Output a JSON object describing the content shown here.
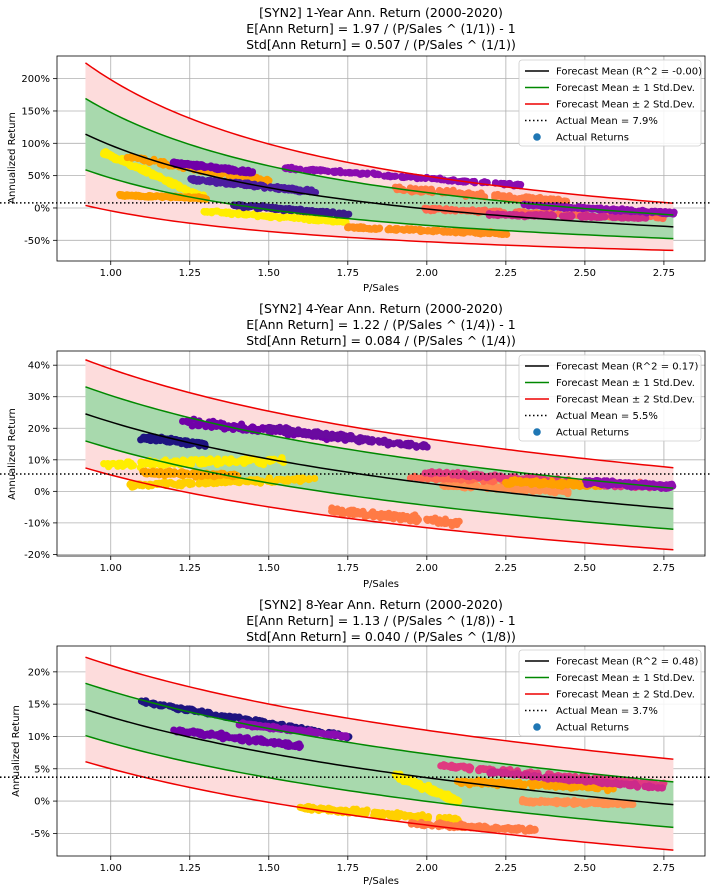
{
  "chart_data": [
    {
      "type": "line",
      "title": [
        "[SYN2] 1-Year Ann. Return (2000-2020)",
        "E[Ann Return] = 1.97 / (P/Sales ^ (1/1)) - 1",
        "Std[Ann Return] = 0.507 / (P/Sales ^ (1/1))"
      ],
      "xlabel": "P/Sales",
      "ylabel": "Annualized Return",
      "xlim": [
        0.83,
        2.88
      ],
      "ylim": [
        -0.82,
        2.35
      ],
      "xticks": [
        1.0,
        1.25,
        1.5,
        1.75,
        2.0,
        2.25,
        2.5,
        2.75
      ],
      "xtick_labels": [
        "1.00",
        "1.25",
        "1.50",
        "1.75",
        "2.00",
        "2.25",
        "2.50",
        "2.75"
      ],
      "yticks": [
        -0.5,
        0.0,
        0.5,
        1.0,
        1.5,
        2.0
      ],
      "ytick_labels": [
        "-50%",
        "0%",
        "50%",
        "100%",
        "150%",
        "200%"
      ],
      "model": {
        "a": 1.97,
        "s": 0.507,
        "k": 1,
        "x_range": [
          0.92,
          2.78
        ]
      },
      "actual_mean": 0.079,
      "legend": [
        "Forecast Mean (R^2 = -0.00)",
        "Forecast Mean ± 1 Std.Dev.",
        "Forecast Mean ± 2 Std.Dev.",
        "Actual Mean = 7.9%",
        "Actual Returns"
      ],
      "scatter": [
        {
          "color": "#ffee00",
          "x": [
            0.98,
            1.3
          ],
          "y": [
            0.85,
            0.15
          ],
          "w": 0.08
        },
        {
          "color": "#ffee00",
          "x": [
            1.3,
            1.75
          ],
          "y": [
            -0.05,
            -0.22
          ],
          "w": 0.06
        },
        {
          "color": "#ffa000",
          "x": [
            1.05,
            1.5
          ],
          "y": [
            0.8,
            0.4
          ],
          "w": 0.1
        },
        {
          "color": "#ffa000",
          "x": [
            1.02,
            1.3
          ],
          "y": [
            0.2,
            0.15
          ],
          "w": 0.05
        },
        {
          "color": "#ff8c1a",
          "x": [
            1.75,
            2.25
          ],
          "y": [
            -0.3,
            -0.4
          ],
          "w": 0.05
        },
        {
          "color": "#7000a8",
          "x": [
            1.2,
            1.45
          ],
          "y": [
            0.7,
            0.55
          ],
          "w": 0.07
        },
        {
          "color": "#4c1da0",
          "x": [
            1.25,
            1.65
          ],
          "y": [
            0.45,
            0.25
          ],
          "w": 0.07
        },
        {
          "color": "#3a1a8a",
          "x": [
            1.38,
            1.75
          ],
          "y": [
            0.05,
            -0.1
          ],
          "w": 0.06
        },
        {
          "color": "#8a0cb0",
          "x": [
            1.55,
            2.3
          ],
          "y": [
            0.62,
            0.35
          ],
          "w": 0.06
        },
        {
          "color": "#ff7a45",
          "x": [
            1.9,
            2.45
          ],
          "y": [
            0.3,
            0.1
          ],
          "w": 0.1
        },
        {
          "color": "#ff6a50",
          "x": [
            2.0,
            2.75
          ],
          "y": [
            -0.02,
            -0.15
          ],
          "w": 0.07
        },
        {
          "color": "#cc2a8a",
          "x": [
            2.2,
            2.7
          ],
          "y": [
            -0.1,
            -0.15
          ],
          "w": 0.06
        },
        {
          "color": "#8f0eb0",
          "x": [
            2.3,
            2.78
          ],
          "y": [
            0.05,
            -0.08
          ],
          "w": 0.05
        }
      ]
    },
    {
      "type": "line",
      "title": [
        "[SYN2] 4-Year Ann. Return (2000-2020)",
        "E[Ann Return] = 1.22 / (P/Sales ^ (1/4)) - 1",
        "Std[Ann Return] = 0.084 / (P/Sales ^ (1/4))"
      ],
      "xlabel": "P/Sales",
      "ylabel": "Annualized Return",
      "xlim": [
        0.83,
        2.88
      ],
      "ylim": [
        -0.205,
        0.445
      ],
      "xticks": [
        1.0,
        1.25,
        1.5,
        1.75,
        2.0,
        2.25,
        2.5,
        2.75
      ],
      "xtick_labels": [
        "1.00",
        "1.25",
        "1.50",
        "1.75",
        "2.00",
        "2.25",
        "2.50",
        "2.75"
      ],
      "yticks": [
        -0.2,
        -0.1,
        0.0,
        0.1,
        0.2,
        0.3,
        0.4
      ],
      "ytick_labels": [
        "-20%",
        "-10%",
        "0%",
        "10%",
        "20%",
        "30%",
        "40%"
      ],
      "model": {
        "a": 1.22,
        "s": 0.084,
        "k": 4,
        "x_range": [
          0.92,
          2.78
        ]
      },
      "actual_mean": 0.055,
      "legend": [
        "Forecast Mean (R^2 = 0.17)",
        "Forecast Mean ± 1 Std.Dev.",
        "Forecast Mean ± 2 Std.Dev.",
        "Actual Mean = 5.5%",
        "Actual Returns"
      ],
      "scatter": [
        {
          "color": "#ffee00",
          "x": [
            0.98,
            1.55
          ],
          "y": [
            0.085,
            0.1
          ],
          "w": 0.03
        },
        {
          "color": "#ffd000",
          "x": [
            1.05,
            1.65
          ],
          "y": [
            0.02,
            0.04
          ],
          "w": 0.02
        },
        {
          "color": "#ffa500",
          "x": [
            1.1,
            1.4
          ],
          "y": [
            0.06,
            0.05
          ],
          "w": 0.02
        },
        {
          "color": "#1f1480",
          "x": [
            1.1,
            1.3
          ],
          "y": [
            0.17,
            0.15
          ],
          "w": 0.02
        },
        {
          "color": "#7000a8",
          "x": [
            1.23,
            1.75
          ],
          "y": [
            0.22,
            0.17
          ],
          "w": 0.03
        },
        {
          "color": "#6a0aa0",
          "x": [
            1.5,
            2.0
          ],
          "y": [
            0.2,
            0.14
          ],
          "w": 0.02
        },
        {
          "color": "#ff7a45",
          "x": [
            1.7,
            2.1
          ],
          "y": [
            -0.06,
            -0.1
          ],
          "w": 0.03
        },
        {
          "color": "#ff9050",
          "x": [
            2.05,
            2.45
          ],
          "y": [
            0.02,
            0.0
          ],
          "w": 0.02
        },
        {
          "color": "#ff6a50",
          "x": [
            1.95,
            2.7
          ],
          "y": [
            0.045,
            0.02
          ],
          "w": 0.02
        },
        {
          "color": "#e03a80",
          "x": [
            2.0,
            2.75
          ],
          "y": [
            0.06,
            0.01
          ],
          "w": 0.02
        },
        {
          "color": "#ffa000",
          "x": [
            2.25,
            2.55
          ],
          "y": [
            0.03,
            0.02
          ],
          "w": 0.02
        },
        {
          "color": "#8f0eb0",
          "x": [
            2.5,
            2.78
          ],
          "y": [
            0.03,
            0.015
          ],
          "w": 0.02
        }
      ]
    },
    {
      "type": "line",
      "title": [
        "[SYN2] 8-Year Ann. Return (2000-2020)",
        "E[Ann Return] = 1.13 / (P/Sales ^ (1/8)) - 1",
        "Std[Ann Return] = 0.040 / (P/Sales ^ (1/8))"
      ],
      "xlabel": "P/Sales",
      "ylabel": "Annualized Return",
      "xlim": [
        0.83,
        2.88
      ],
      "ylim": [
        -0.085,
        0.24
      ],
      "xticks": [
        1.0,
        1.25,
        1.5,
        1.75,
        2.0,
        2.25,
        2.5,
        2.75
      ],
      "xtick_labels": [
        "1.00",
        "1.25",
        "1.50",
        "1.75",
        "2.00",
        "2.25",
        "2.50",
        "2.75"
      ],
      "yticks": [
        -0.05,
        0.0,
        0.05,
        0.1,
        0.15,
        0.2
      ],
      "ytick_labels": [
        "-5%",
        "0%",
        "5%",
        "10%",
        "15%",
        "20%"
      ],
      "model": {
        "a": 1.13,
        "s": 0.04,
        "k": 8,
        "x_range": [
          0.92,
          2.78
        ]
      },
      "actual_mean": 0.037,
      "legend": [
        "Forecast Mean (R^2 = 0.48)",
        "Forecast Mean ± 1 Std.Dev.",
        "Forecast Mean ± 2 Std.Dev.",
        "Actual Mean = 3.7%",
        "Actual Returns"
      ],
      "scatter": [
        {
          "color": "#1f1480",
          "x": [
            1.08,
            1.75
          ],
          "y": [
            0.155,
            0.1
          ],
          "w": 0.008
        },
        {
          "color": "#7000a8",
          "x": [
            1.2,
            1.6
          ],
          "y": [
            0.11,
            0.085
          ],
          "w": 0.01
        },
        {
          "color": "#8a0cb0",
          "x": [
            1.4,
            1.75
          ],
          "y": [
            0.12,
            0.1
          ],
          "w": 0.006
        },
        {
          "color": "#ffee00",
          "x": [
            1.9,
            2.1
          ],
          "y": [
            0.04,
            0.0
          ],
          "w": 0.01
        },
        {
          "color": "#ffd000",
          "x": [
            1.6,
            2.1
          ],
          "y": [
            -0.01,
            -0.03
          ],
          "w": 0.01
        },
        {
          "color": "#ffa000",
          "x": [
            2.1,
            2.6
          ],
          "y": [
            0.03,
            0.02
          ],
          "w": 0.01
        },
        {
          "color": "#ff9050",
          "x": [
            2.3,
            2.65
          ],
          "y": [
            0.0,
            -0.005
          ],
          "w": 0.008
        },
        {
          "color": "#ff7a45",
          "x": [
            1.95,
            2.35
          ],
          "y": [
            -0.035,
            -0.045
          ],
          "w": 0.008
        },
        {
          "color": "#e03a80",
          "x": [
            2.05,
            2.75
          ],
          "y": [
            0.055,
            0.025
          ],
          "w": 0.008
        },
        {
          "color": "#cc2a8a",
          "x": [
            2.2,
            2.75
          ],
          "y": [
            0.045,
            0.02
          ],
          "w": 0.006
        }
      ]
    }
  ]
}
